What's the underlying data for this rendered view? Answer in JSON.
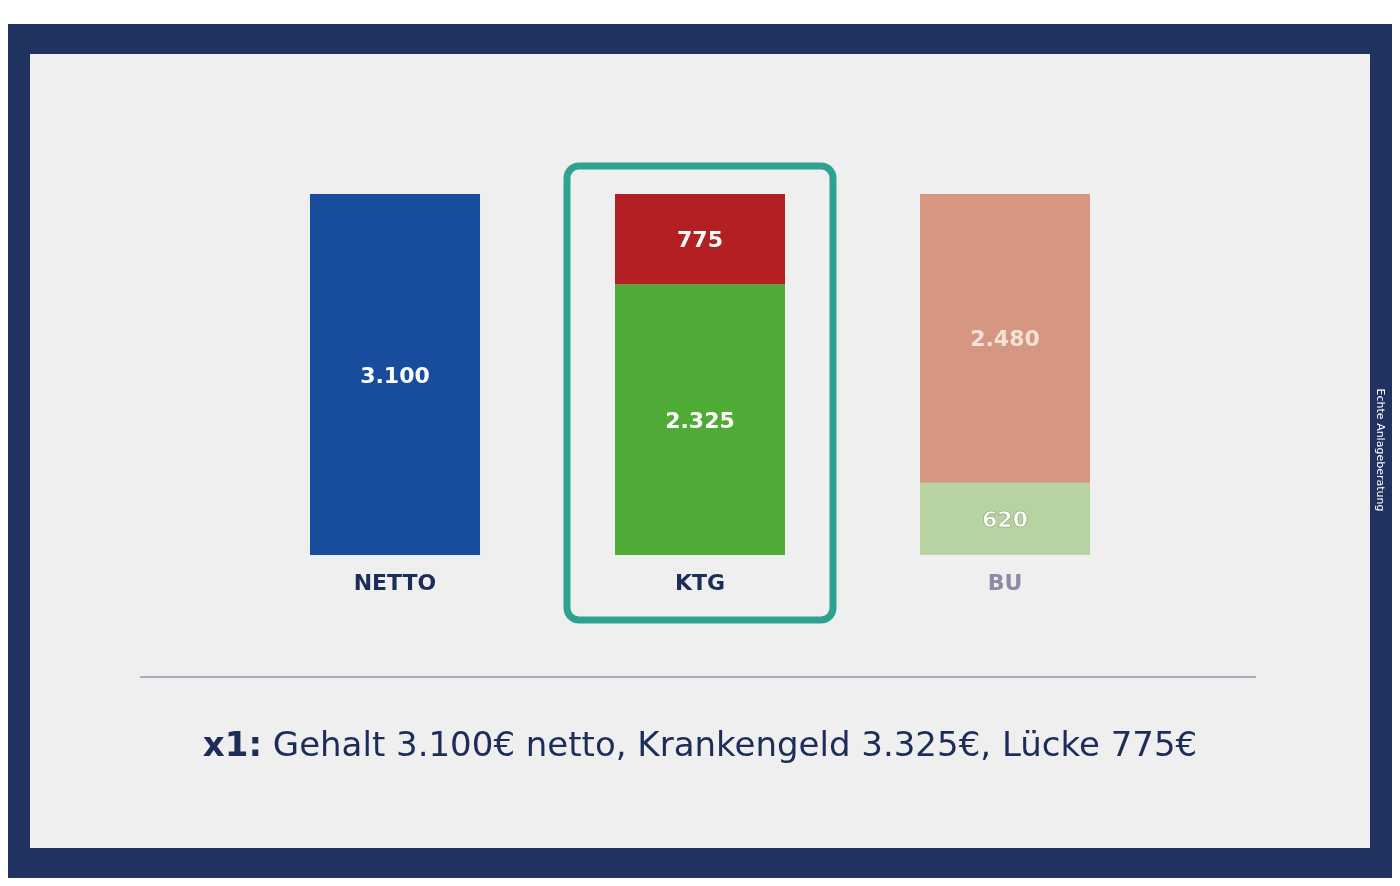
{
  "chart_data": {
    "type": "bar",
    "stacked": true,
    "categories": [
      "NETTO",
      "KTG",
      "BU"
    ],
    "series": [
      {
        "colors": [
          "#174d9c",
          "#4fab36",
          "#b7d3a1"
        ],
        "values": [
          3100,
          2325,
          620
        ],
        "value_labels": [
          "3.100",
          "2.325",
          "620"
        ]
      },
      {
        "colors": [
          null,
          "#b31f22",
          "#d59682"
        ],
        "values": [
          null,
          775,
          2480
        ],
        "value_labels": [
          null,
          "775",
          "2.480"
        ]
      }
    ],
    "annotations": [
      "x1: Gehalt 3.100€ netto, Krankengeld 3.325€, Lücke 775€",
      "Echte Anlageberatung"
    ]
  }
}
